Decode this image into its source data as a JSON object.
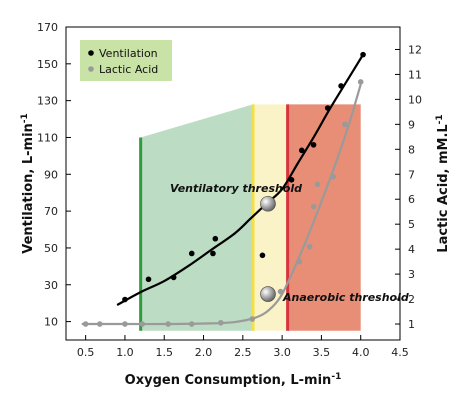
{
  "chart_data": {
    "type": "line",
    "xlabel": "Oxygen Consumption, L-min",
    "xlabel_sup": "-1",
    "ylabel_left": "Ventilation, L-min",
    "ylabel_left_sup": "-1",
    "ylabel_right": "Lactic Acid, mM.L",
    "ylabel_right_sup": "-1",
    "xlim": [
      0.25,
      4.5
    ],
    "ylim_left": [
      0,
      170
    ],
    "ylim_right": [
      0.36,
      12.9
    ],
    "x_ticks": [
      0.5,
      1.0,
      1.5,
      2.0,
      2.5,
      3.0,
      3.5,
      4.0,
      4.5
    ],
    "x_tick_labels": [
      "0.5",
      "1.0",
      "1.5",
      "2.0",
      "2.5",
      "3.0",
      "3.5",
      "4.0",
      "4.5"
    ],
    "y_left_ticks": [
      10,
      30,
      50,
      70,
      90,
      110,
      130,
      150,
      170
    ],
    "y_right_ticks": [
      1,
      2,
      3,
      4,
      5,
      6,
      7,
      8,
      9,
      10,
      11,
      12
    ],
    "grid": false,
    "legend": {
      "placement": "top-left",
      "entries": [
        {
          "name": "Ventilation",
          "marker_color": "#000000"
        },
        {
          "name": "Lactic Acid",
          "marker_color": "#9a9a9a"
        }
      ],
      "background": "#c9e2a6"
    },
    "series": [
      {
        "name": "Ventilation",
        "axis": "left",
        "color": "#000000",
        "points": [
          {
            "x": 1.0,
            "y": 22
          },
          {
            "x": 1.3,
            "y": 33
          },
          {
            "x": 1.62,
            "y": 34
          },
          {
            "x": 1.85,
            "y": 47
          },
          {
            "x": 2.12,
            "y": 47
          },
          {
            "x": 2.15,
            "y": 55
          },
          {
            "x": 2.75,
            "y": 46
          },
          {
            "x": 3.12,
            "y": 87
          },
          {
            "x": 3.25,
            "y": 103
          },
          {
            "x": 3.4,
            "y": 106
          },
          {
            "x": 3.58,
            "y": 126
          },
          {
            "x": 3.75,
            "y": 138
          },
          {
            "x": 4.03,
            "y": 155
          }
        ],
        "curve": [
          [
            0.9,
            19
          ],
          [
            1.2,
            26
          ],
          [
            1.5,
            32
          ],
          [
            1.8,
            40
          ],
          [
            2.1,
            49
          ],
          [
            2.4,
            58
          ],
          [
            2.6,
            66
          ],
          [
            2.8,
            74
          ],
          [
            3.0,
            82
          ],
          [
            3.2,
            96
          ],
          [
            3.4,
            110
          ],
          [
            3.6,
            125
          ],
          [
            3.8,
            139
          ],
          [
            4.03,
            155
          ]
        ]
      },
      {
        "name": "Lactic Acid",
        "axis": "right",
        "color": "#9a9a9a",
        "points": [
          {
            "x": 0.5,
            "y": 1.0
          },
          {
            "x": 0.68,
            "y": 1.0
          },
          {
            "x": 1.0,
            "y": 1.0
          },
          {
            "x": 1.22,
            "y": 1.0
          },
          {
            "x": 1.55,
            "y": 1.0
          },
          {
            "x": 1.85,
            "y": 1.0
          },
          {
            "x": 2.22,
            "y": 1.05
          },
          {
            "x": 2.62,
            "y": 1.2
          },
          {
            "x": 2.98,
            "y": 2.3
          },
          {
            "x": 3.22,
            "y": 3.5
          },
          {
            "x": 3.35,
            "y": 4.1
          },
          {
            "x": 3.4,
            "y": 5.7
          },
          {
            "x": 3.45,
            "y": 6.6
          },
          {
            "x": 3.65,
            "y": 6.9
          },
          {
            "x": 3.8,
            "y": 9.0
          },
          {
            "x": 4.0,
            "y": 10.7
          }
        ],
        "curve": [
          [
            0.45,
            1.0
          ],
          [
            1.0,
            1.0
          ],
          [
            1.5,
            1.0
          ],
          [
            2.0,
            1.02
          ],
          [
            2.4,
            1.08
          ],
          [
            2.7,
            1.3
          ],
          [
            2.88,
            1.7
          ],
          [
            3.0,
            2.2
          ],
          [
            3.15,
            3.2
          ],
          [
            3.3,
            4.3
          ],
          [
            3.5,
            5.9
          ],
          [
            3.7,
            7.6
          ],
          [
            3.85,
            9.0
          ],
          [
            4.0,
            10.6
          ]
        ]
      }
    ],
    "thresholds": [
      {
        "label": "Ventilatory threshold",
        "x": 2.63,
        "color": "#f2e046",
        "marker": {
          "x": 2.82,
          "y_left": 74
        }
      },
      {
        "label": "Anaerobic threshold",
        "x": 3.07,
        "color": "#d6343e",
        "marker": {
          "x": 2.82,
          "y_right": 2.2
        }
      }
    ],
    "start_line": {
      "x": 1.2,
      "color": "#2f9a3e"
    },
    "regions": [
      {
        "name": "green",
        "x_start": 1.2,
        "x_end": 2.63,
        "y_top_start": 110,
        "y_top_end": 128,
        "y_bottom": 5,
        "color": "#bcdcc4"
      },
      {
        "name": "yellow",
        "x_start": 2.63,
        "x_end": 3.07,
        "y_top": 128,
        "y_bottom": 5,
        "color": "#fbf3c8"
      },
      {
        "name": "red",
        "x_start": 3.07,
        "x_end": 4.0,
        "y_top": 128,
        "y_bottom": 5,
        "color": "#e88e76"
      }
    ]
  }
}
